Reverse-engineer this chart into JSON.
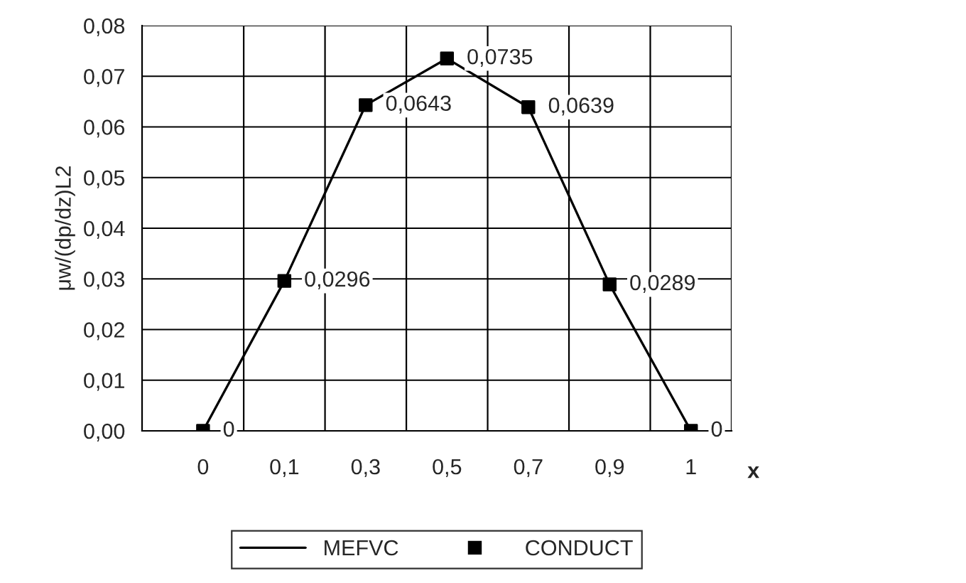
{
  "chart_data": {
    "type": "line",
    "xlabel": "x",
    "ylabel": "μw/(dp/dz)L2",
    "categories": [
      "0",
      "0,1",
      "0,3",
      "0,5",
      "0,7",
      "0,9",
      "1"
    ],
    "series": [
      {
        "name": "MEFVC",
        "type": "line",
        "color": "#000000",
        "marker": "none",
        "values": [
          0,
          0.0296,
          0.0643,
          0.0735,
          0.0639,
          0.0289,
          0
        ]
      },
      {
        "name": "CONDUCT",
        "type": "scatter",
        "color": "#000000",
        "marker": "square",
        "values": [
          0,
          0.0296,
          0.0643,
          0.0735,
          0.0639,
          0.0289,
          0
        ],
        "value_labels": [
          "0",
          "0,0296",
          "0,0643",
          "0,0735",
          "0,0639",
          "0,0289",
          "0"
        ]
      }
    ],
    "ylim": [
      0,
      0.08
    ],
    "yticks": [
      {
        "value": 0,
        "label": "0,00"
      },
      {
        "value": 0.01,
        "label": "0,01"
      },
      {
        "value": 0.02,
        "label": "0,02"
      },
      {
        "value": 0.03,
        "label": "0,03"
      },
      {
        "value": 0.04,
        "label": "0,04"
      },
      {
        "value": 0.05,
        "label": "0,05"
      },
      {
        "value": 0.06,
        "label": "0,06"
      },
      {
        "value": 0.07,
        "label": "0,07"
      },
      {
        "value": 0.08,
        "label": "0,08"
      }
    ],
    "grid": true,
    "legend": "bottom"
  }
}
